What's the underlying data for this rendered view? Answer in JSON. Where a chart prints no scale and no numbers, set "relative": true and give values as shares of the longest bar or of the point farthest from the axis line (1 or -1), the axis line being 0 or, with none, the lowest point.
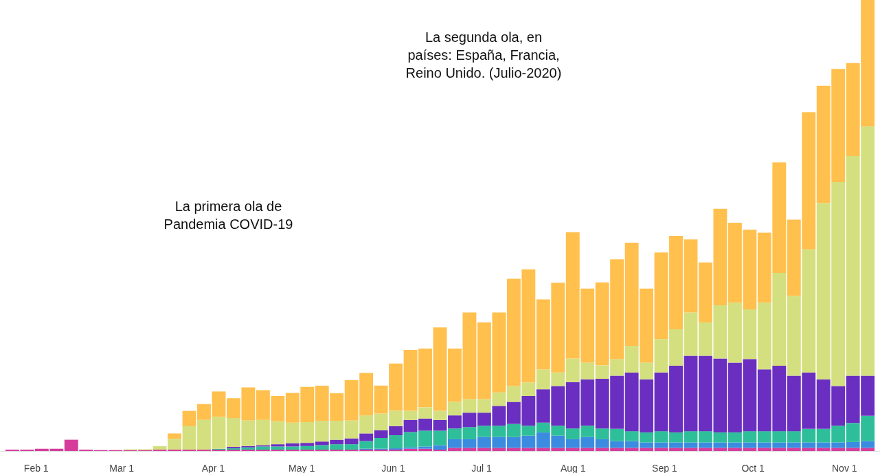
{
  "chart_data": {
    "type": "bar",
    "stacked": true,
    "relative": true,
    "legend": false,
    "grid": false,
    "x": [
      "2020-01-24",
      "2020-01-29",
      "2020-02-03",
      "2020-02-08",
      "2020-02-13",
      "2020-02-18",
      "2020-02-23",
      "2020-02-28",
      "2020-03-04",
      "2020-03-09",
      "2020-03-14",
      "2020-03-19",
      "2020-03-24",
      "2020-03-29",
      "2020-04-03",
      "2020-04-08",
      "2020-04-13",
      "2020-04-18",
      "2020-04-23",
      "2020-04-28",
      "2020-05-03",
      "2020-05-08",
      "2020-05-13",
      "2020-05-18",
      "2020-05-23",
      "2020-05-28",
      "2020-06-02",
      "2020-06-07",
      "2020-06-12",
      "2020-06-17",
      "2020-06-22",
      "2020-06-27",
      "2020-07-02",
      "2020-07-07",
      "2020-07-12",
      "2020-07-17",
      "2020-07-22",
      "2020-07-27",
      "2020-08-01",
      "2020-08-06",
      "2020-08-11",
      "2020-08-16",
      "2020-08-21",
      "2020-08-26",
      "2020-08-31",
      "2020-09-05",
      "2020-09-10",
      "2020-09-15",
      "2020-09-20",
      "2020-09-25",
      "2020-09-30",
      "2020-10-05",
      "2020-10-10",
      "2020-10-15",
      "2020-10-20",
      "2020-10-25",
      "2020-10-30",
      "2020-11-04",
      "2020-11-09"
    ],
    "xlim": [
      "2020-01-21",
      "2020-11-12"
    ],
    "xticks": [
      {
        "value": "2020-02-01",
        "label": "Feb 1"
      },
      {
        "value": "2020-03-01",
        "label": "Mar 1"
      },
      {
        "value": "2020-04-01",
        "label": "Apr 1"
      },
      {
        "value": "2020-05-01",
        "label": "May 1"
      },
      {
        "value": "2020-06-01",
        "label": "Jun 1"
      },
      {
        "value": "2020-07-01",
        "label": "Jul 1"
      },
      {
        "value": "2020-08-01",
        "label": "Aug 1"
      },
      {
        "value": "2020-09-01",
        "label": "Sep 1"
      },
      {
        "value": "2020-10-01",
        "label": "Oct 1"
      },
      {
        "value": "2020-11-01",
        "label": "Nov 1"
      }
    ],
    "series": [
      {
        "color": "#d63d9b",
        "values": [
          0.003,
          0.003,
          0.005,
          0.005,
          0.025,
          0.003,
          0.002,
          0.002,
          0.002,
          0.002,
          0.003,
          0.003,
          0.003,
          0.003,
          0.003,
          0.003,
          0.003,
          0.003,
          0.003,
          0.003,
          0.003,
          0.003,
          0.003,
          0.003,
          0.003,
          0.003,
          0.003,
          0.005,
          0.005,
          0.003,
          0.007,
          0.007,
          0.007,
          0.007,
          0.007,
          0.007,
          0.007,
          0.007,
          0.007,
          0.007,
          0.007,
          0.007,
          0.007,
          0.007,
          0.007,
          0.007,
          0.007,
          0.007,
          0.007,
          0.007,
          0.007,
          0.007,
          0.007,
          0.007,
          0.007,
          0.007,
          0.007,
          0.007,
          0.007
        ]
      },
      {
        "color": "#3b8be0",
        "values": [
          0,
          0,
          0,
          0,
          0,
          0,
          0,
          0,
          0,
          0,
          0,
          0,
          0,
          0,
          0,
          0,
          0,
          0,
          0,
          0,
          0,
          0,
          0,
          0,
          0.002,
          0.002,
          0.003,
          0.003,
          0.005,
          0.01,
          0.019,
          0.019,
          0.024,
          0.024,
          0.024,
          0.027,
          0.034,
          0.027,
          0.019,
          0.024,
          0.019,
          0.015,
          0.015,
          0.012,
          0.012,
          0.012,
          0.012,
          0.012,
          0.012,
          0.012,
          0.012,
          0.012,
          0.012,
          0.012,
          0.012,
          0.012,
          0.012,
          0.013,
          0.015
        ]
      },
      {
        "color": "#2ebf9a",
        "values": [
          0,
          0,
          0,
          0,
          0,
          0,
          0,
          0,
          0,
          0,
          0,
          0,
          0,
          0,
          0.002,
          0.003,
          0.005,
          0.007,
          0.007,
          0.007,
          0.008,
          0.01,
          0.012,
          0.012,
          0.017,
          0.024,
          0.029,
          0.034,
          0.035,
          0.032,
          0.024,
          0.027,
          0.025,
          0.025,
          0.029,
          0.022,
          0.022,
          0.022,
          0.024,
          0.025,
          0.024,
          0.027,
          0.022,
          0.022,
          0.025,
          0.022,
          0.025,
          0.025,
          0.022,
          0.022,
          0.025,
          0.025,
          0.025,
          0.025,
          0.03,
          0.03,
          0.037,
          0.042,
          0.056
        ]
      },
      {
        "color": "#6a2fc0",
        "values": [
          0,
          0,
          0,
          0,
          0,
          0,
          0,
          0,
          0,
          0,
          0,
          0,
          0,
          0,
          0,
          0.003,
          0.003,
          0.003,
          0.005,
          0.007,
          0.007,
          0.008,
          0.01,
          0.013,
          0.017,
          0.017,
          0.02,
          0.027,
          0.027,
          0.024,
          0.029,
          0.032,
          0.029,
          0.044,
          0.049,
          0.066,
          0.074,
          0.088,
          0.103,
          0.103,
          0.11,
          0.118,
          0.13,
          0.118,
          0.13,
          0.148,
          0.167,
          0.167,
          0.164,
          0.155,
          0.16,
          0.137,
          0.145,
          0.123,
          0.125,
          0.11,
          0.088,
          0.105,
          0.089
        ]
      },
      {
        "color": "#d4e07f",
        "values": [
          0,
          0,
          0,
          0,
          0,
          0,
          0,
          0,
          0.002,
          0.002,
          0.008,
          0.024,
          0.052,
          0.066,
          0.071,
          0.064,
          0.057,
          0.056,
          0.051,
          0.046,
          0.046,
          0.046,
          0.042,
          0.04,
          0.04,
          0.037,
          0.034,
          0.02,
          0.025,
          0.02,
          0.03,
          0.03,
          0.03,
          0.03,
          0.035,
          0.03,
          0.044,
          0.03,
          0.052,
          0.037,
          0.03,
          0.037,
          0.059,
          0.037,
          0.074,
          0.081,
          0.096,
          0.074,
          0.118,
          0.133,
          0.11,
          0.148,
          0.206,
          0.177,
          0.273,
          0.391,
          0.452,
          0.487,
          0.553
        ]
      },
      {
        "color": "#ffc04d",
        "values": [
          0,
          0,
          0,
          0,
          0,
          0,
          0,
          0,
          0,
          0,
          0,
          0.012,
          0.034,
          0.035,
          0.056,
          0.044,
          0.073,
          0.066,
          0.056,
          0.066,
          0.078,
          0.078,
          0.061,
          0.089,
          0.094,
          0.062,
          0.105,
          0.135,
          0.13,
          0.185,
          0.118,
          0.192,
          0.17,
          0.177,
          0.238,
          0.251,
          0.155,
          0.199,
          0.28,
          0.164,
          0.184,
          0.221,
          0.229,
          0.164,
          0.192,
          0.207,
          0.162,
          0.133,
          0.214,
          0.177,
          0.177,
          0.155,
          0.245,
          0.169,
          0.304,
          0.26,
          0.251,
          0.206,
          0.28
        ]
      }
    ],
    "annotations": [
      "La primera ola de Pandemia  COVID-19",
      "La segunda ola, en países: España, Francia, Reino Unido. (Julio-2020)"
    ]
  }
}
